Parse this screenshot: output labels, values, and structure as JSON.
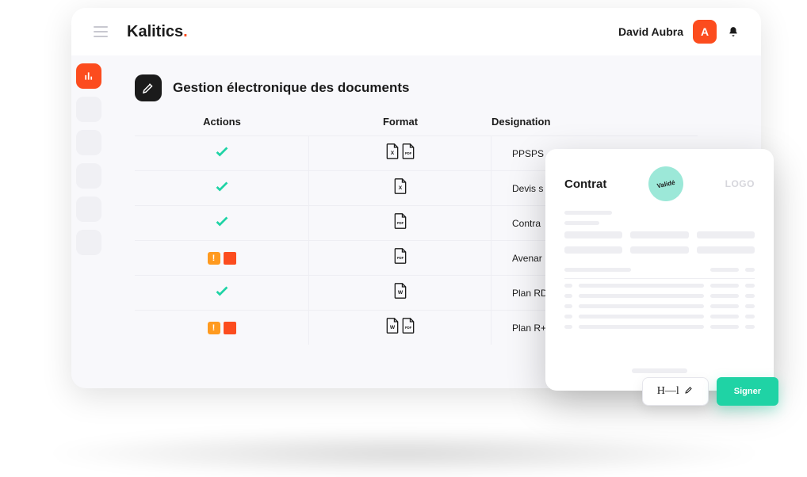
{
  "brand": {
    "name": "Kalitics",
    "dot": "."
  },
  "user": {
    "name": "David Aubra",
    "initial": "A"
  },
  "page": {
    "title": "Gestion électronique des documents"
  },
  "columns": {
    "actions": "Actions",
    "format": "Format",
    "designation": "Designation"
  },
  "rows": [
    {
      "status": "ok",
      "formats": [
        "xls",
        "pdf"
      ],
      "designation": "PPSPS"
    },
    {
      "status": "ok",
      "formats": [
        "xls"
      ],
      "designation": "Devis s"
    },
    {
      "status": "ok",
      "formats": [
        "pdf"
      ],
      "designation": "Contra"
    },
    {
      "status": "warn",
      "formats": [
        "pdf"
      ],
      "designation": "Avenar"
    },
    {
      "status": "ok",
      "formats": [
        "doc"
      ],
      "designation": "Plan RD"
    },
    {
      "status": "warn",
      "formats": [
        "doc",
        "pdf"
      ],
      "designation": "Plan R+"
    }
  ],
  "doc_preview": {
    "title": "Contrat",
    "badge": "Validé",
    "logo": "LOGO"
  },
  "sign": {
    "button_label": "Signer"
  },
  "colors": {
    "accent": "#fc4c1e",
    "success": "#1fd3a5",
    "badge_bg": "#9ce8d8",
    "warn_orange": "#ff9a1f",
    "bg": "#f8f8fb",
    "text": "#1b1b1b",
    "skeleton": "#eeeef2"
  }
}
